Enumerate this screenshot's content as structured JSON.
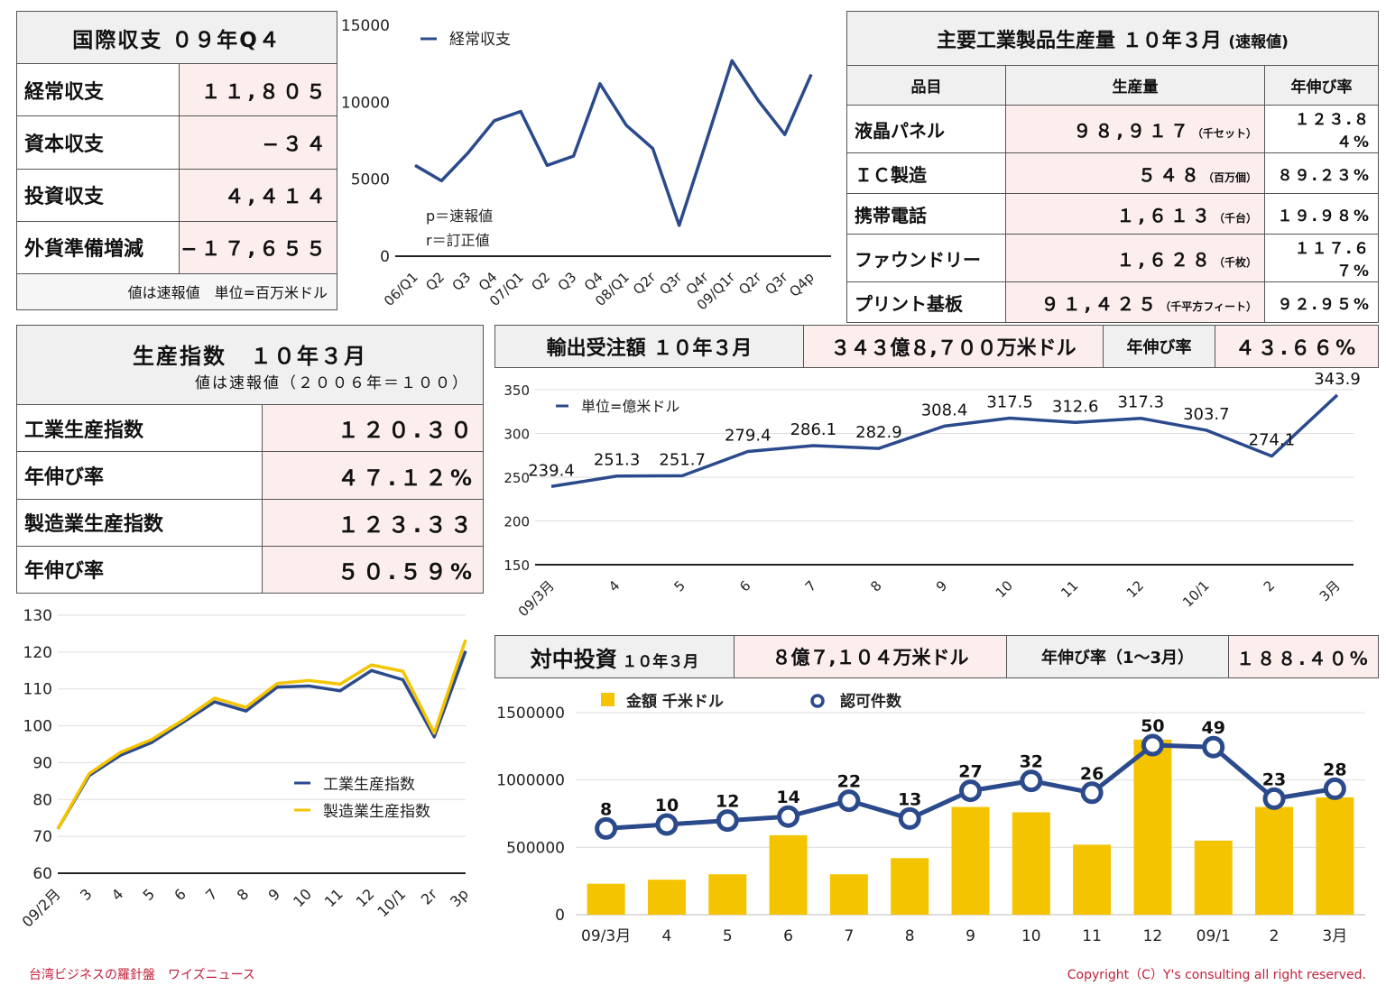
{
  "bop": {
    "title": "国際収支 ０９年Q４",
    "rows": [
      {
        "label": "経常収支",
        "value": "１１,８０５"
      },
      {
        "label": "資本収支",
        "value": "−３４"
      },
      {
        "label": "投資収支",
        "value": "４,４１４"
      },
      {
        "label": "外貨準備増減",
        "value": "−１７,６５５"
      }
    ],
    "note": "値は速報値　単位=百万米ドル"
  },
  "industrial": {
    "title": "主要工業製品生産量 １０年３月",
    "title_suffix": "(速報値)",
    "headers": [
      "品目",
      "生産量",
      "年伸び率"
    ],
    "rows": [
      {
        "item": "液晶パネル",
        "amount": "９８,９１７",
        "unit": "（千セット）",
        "growth": "１２３.８４%"
      },
      {
        "item": "ＩＣ製造",
        "amount": "５４８",
        "unit": "（百万個）",
        "growth": "８９.２３%"
      },
      {
        "item": "携帯電話",
        "amount": "１,６１３",
        "unit": "（千台）",
        "growth": "１９.９８%"
      },
      {
        "item": "ファウンドリー",
        "amount": "１,６２８",
        "unit": "（千枚）",
        "growth": "１１７.６７%"
      },
      {
        "item": "プリント基板",
        "amount": "９１,４２５",
        "unit": "（千平方フィート）",
        "growth": "９２.９５%"
      }
    ]
  },
  "production": {
    "title": "生産指数　１０年３月",
    "subtitle": "値は速報値（２００６年＝１００）",
    "rows": [
      {
        "label": "工業生産指数",
        "value": "１２０.３０"
      },
      {
        "label": "年伸び率",
        "value": "４７.１２%"
      },
      {
        "label": "製造業生産指数",
        "value": "１２３.３３"
      },
      {
        "label": "年伸び率",
        "value": "５０.５９%"
      }
    ]
  },
  "export": {
    "title": "輸出受注額 １０年３月",
    "amount": "３４３億８,７００万米ドル",
    "growth_label": "年伸び率",
    "growth": "４３.６６%"
  },
  "invest": {
    "title": "対中投資",
    "title_suffix": "１０年３月",
    "amount": "８億７,１０４万米ドル",
    "growth_label": "年伸び率（1～3月）",
    "growth": "１８８.４０%"
  },
  "footer": {
    "left": "台湾ビジネスの羅針盤　ワイズニュース",
    "right": "Copyright（C）Y's consulting all right reserved."
  },
  "colors": {
    "navy": "#2b4a8c",
    "gold": "#f5c400",
    "pink": "#fdeeee"
  },
  "chart_data": [
    {
      "type": "line",
      "x": [
        "06/Q1",
        "Q2",
        "Q3",
        "Q4",
        "07/Q1",
        "Q2",
        "Q3",
        "Q4",
        "08/Q1",
        "Q2r",
        "Q3r",
        "Q4r",
        "09/Q1r",
        "Q2r",
        "Q3r",
        "Q4p"
      ],
      "series": [
        {
          "name": "経常収支",
          "values": [
            5900,
            4900,
            6700,
            8800,
            9400,
            5900,
            6500,
            11200,
            8500,
            7000,
            2000,
            7300,
            12700,
            10100,
            7900,
            11805
          ]
        }
      ],
      "ylim": [
        0,
        15000
      ],
      "yticks": [
        0,
        5000,
        10000,
        15000
      ],
      "annotations": [
        "p＝速報値",
        "r＝訂正値"
      ]
    },
    {
      "type": "line",
      "x": [
        "09/3月",
        "4",
        "5",
        "6",
        "7",
        "8",
        "9",
        "10",
        "11",
        "12",
        "10/1",
        "2",
        "3月"
      ],
      "series": [
        {
          "name": "単位=億米ドル",
          "values": [
            239.4,
            251.3,
            251.7,
            279.4,
            286.1,
            282.9,
            308.4,
            317.5,
            312.6,
            317.3,
            303.7,
            274.1,
            343.9
          ]
        }
      ],
      "ylim": [
        150,
        350
      ],
      "yticks": [
        150,
        200,
        250,
        300,
        350
      ]
    },
    {
      "type": "line",
      "x": [
        "09/2月",
        "3",
        "4",
        "5",
        "6",
        "7",
        "8",
        "9",
        "10",
        "11",
        "12",
        "10/1",
        "2r",
        "3p"
      ],
      "series": [
        {
          "name": "工業生産指数",
          "values": [
            72,
            86.5,
            92,
            95.5,
            101,
            106.5,
            104,
            110.5,
            110.8,
            109.5,
            115,
            112.5,
            97,
            120.3
          ]
        },
        {
          "name": "製造業生産指数",
          "values": [
            72,
            87,
            92.8,
            96.3,
            101.6,
            107.5,
            105,
            111.5,
            112.3,
            111.3,
            116.5,
            114.8,
            98,
            123.33
          ]
        }
      ],
      "ylim": [
        60,
        130
      ],
      "yticks": [
        60,
        70,
        80,
        90,
        100,
        110,
        120,
        130
      ]
    },
    {
      "type": "bar",
      "categories": [
        "09/3月",
        "4",
        "5",
        "6",
        "7",
        "8",
        "9",
        "10",
        "11",
        "12",
        "09/1",
        "2",
        "3月"
      ],
      "series": [
        {
          "name": "金額 千米ドル",
          "values": [
            230000,
            260000,
            300000,
            590000,
            300000,
            420000,
            800000,
            760000,
            520000,
            1300000,
            550000,
            800000,
            871040
          ]
        },
        {
          "name": "認可件数",
          "type": "line",
          "values": [
            8,
            10,
            12,
            14,
            22,
            13,
            27,
            32,
            26,
            50,
            49,
            23,
            28
          ]
        }
      ],
      "ylim": [
        0,
        1500000
      ],
      "yticks": [
        0,
        500000,
        1000000,
        1500000
      ]
    }
  ]
}
